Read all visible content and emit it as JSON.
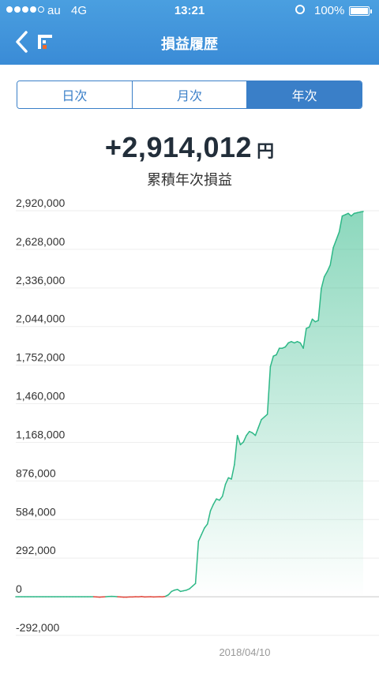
{
  "status_bar": {
    "carrier": "au",
    "network": "4G",
    "time": "13:21",
    "battery": "100%",
    "alarm_icon": "alarm-clock-icon"
  },
  "header": {
    "title": "損益履歴",
    "back_icon": "chevron-left-icon",
    "logo_icon": "app-logo-icon"
  },
  "tabs": [
    {
      "label": "日次",
      "active": false
    },
    {
      "label": "月次",
      "active": false
    },
    {
      "label": "年次",
      "active": true
    }
  ],
  "summary": {
    "value": "+2,914,012",
    "unit": "円",
    "label": "累積年次損益"
  },
  "colors": {
    "header": "#3a8bd6",
    "tab_accent": "#3a7fc8",
    "positive_line": "#2eb887",
    "negative_line": "#e0463a"
  },
  "chart_data": {
    "type": "area",
    "y_ticks": [
      "2,920,000",
      "2,628,000",
      "2,336,000",
      "2,044,000",
      "1,752,000",
      "1,460,000",
      "1,168,000",
      "876,000",
      "584,000",
      "292,000",
      "0",
      "-292,000"
    ],
    "ylim": [
      -292000,
      2920000
    ],
    "x_label": "2018/04/10",
    "grid": true,
    "series": [
      {
        "values": [
          0,
          0,
          0,
          0,
          0,
          0,
          0,
          0,
          0,
          0,
          0,
          0,
          0,
          0,
          0,
          0,
          0,
          0,
          0,
          0,
          0,
          0,
          0,
          0,
          0,
          0,
          0,
          -2000,
          -3000,
          -2000,
          0,
          2000,
          3000,
          2000,
          0,
          -2000,
          -3000,
          -3000,
          -2000,
          -2000,
          0,
          -1000,
          1000,
          -2000,
          -1000,
          0,
          -2000,
          -1000,
          0,
          -1000,
          3000,
          15000,
          40000,
          50000,
          55000,
          40000,
          45000,
          50000,
          60000,
          80000,
          100000,
          420000,
          470000,
          520000,
          550000,
          650000,
          700000,
          740000,
          730000,
          760000,
          850000,
          900000,
          890000,
          1000000,
          1220000,
          1150000,
          1170000,
          1220000,
          1250000,
          1240000,
          1220000,
          1280000,
          1340000,
          1360000,
          1380000,
          1740000,
          1820000,
          1830000,
          1880000,
          1880000,
          1890000,
          1920000,
          1930000,
          1920000,
          1930000,
          1920000,
          1880000,
          2030000,
          2040000,
          2100000,
          2080000,
          2090000,
          2330000,
          2420000,
          2460000,
          2510000,
          2640000,
          2700000,
          2760000,
          2880000,
          2890000,
          2900000,
          2880000,
          2900000,
          2905000,
          2910000,
          2914012
        ]
      }
    ]
  }
}
